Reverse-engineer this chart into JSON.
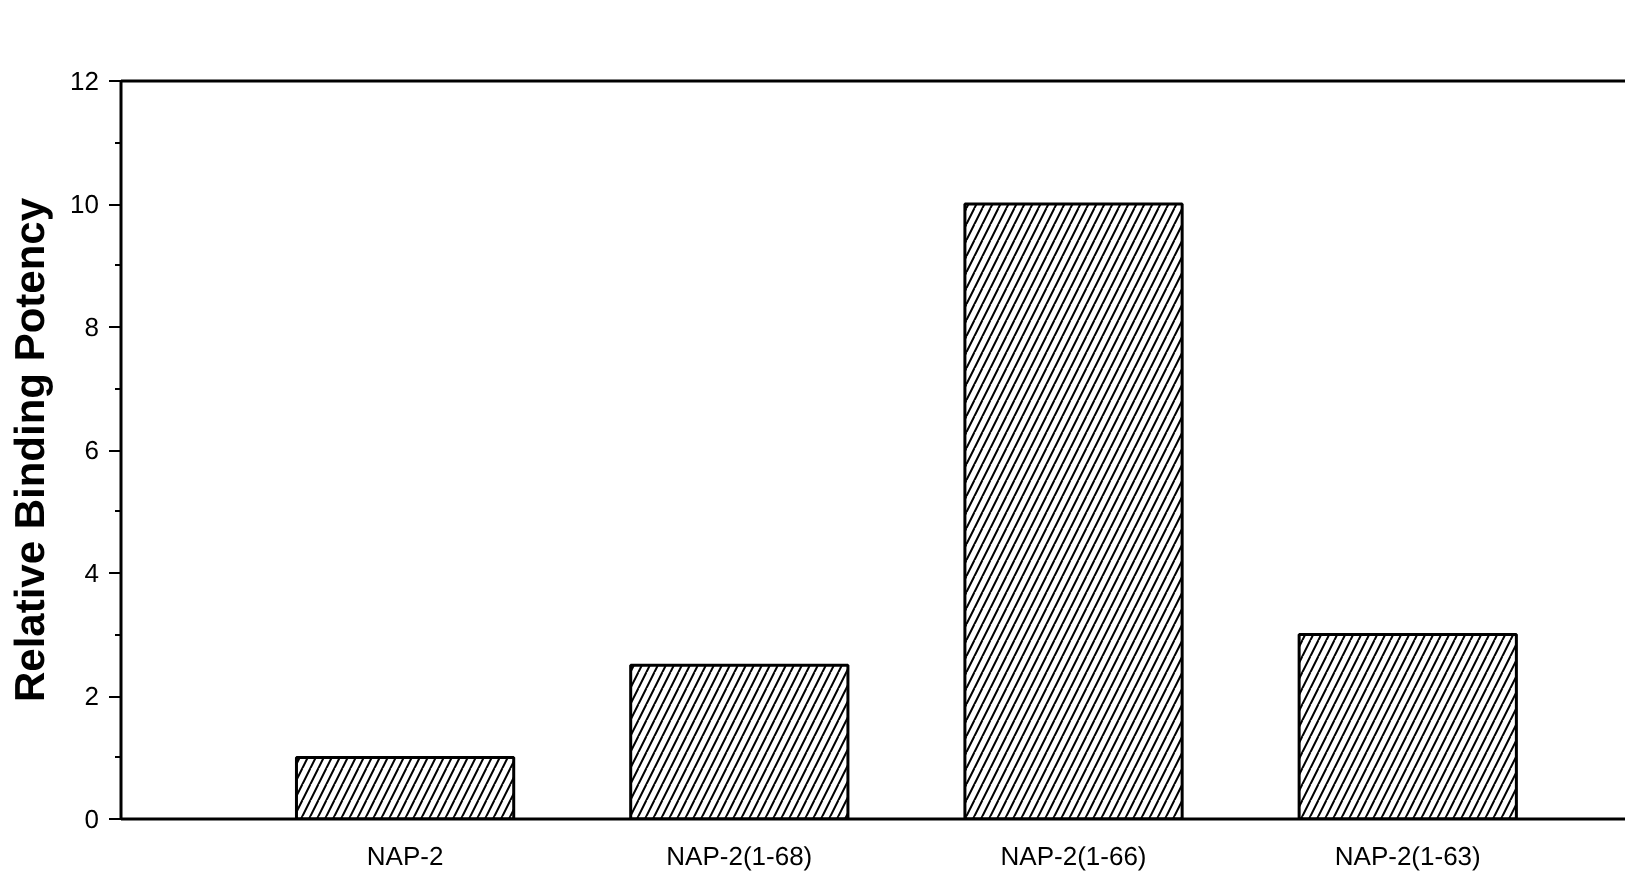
{
  "chart_data": {
    "type": "bar",
    "ylabel": "Relative Binding Potency",
    "categories": [
      "NAP-2",
      "NAP-2(1-68)",
      "NAP-2(1-66)",
      "NAP-2(1-63)"
    ],
    "values": [
      1,
      2.5,
      10,
      3
    ],
    "color": "#000000",
    "ylim": [
      0,
      12
    ],
    "yticks": [
      0,
      2,
      4,
      6,
      8,
      10,
      12
    ],
    "grid": false
  }
}
